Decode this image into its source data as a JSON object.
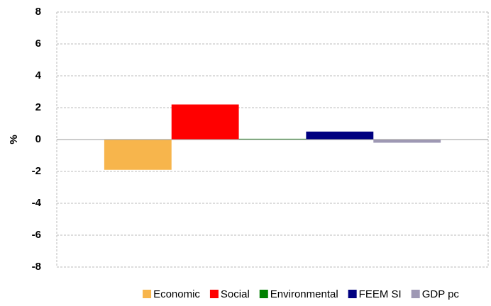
{
  "chart_data": {
    "type": "bar",
    "y_label": "%",
    "categories": [
      null
    ],
    "series": [
      {
        "name": "Economic",
        "color": "#f7b54c",
        "values": [
          -1.9
        ]
      },
      {
        "name": "Social",
        "color": "#ff0000",
        "values": [
          2.2
        ]
      },
      {
        "name": "Environmental",
        "color": "#008000",
        "values": [
          0.05
        ]
      },
      {
        "name": "FEEM SI",
        "color": "#000080",
        "values": [
          0.5
        ]
      },
      {
        "name": "GDP pc",
        "color": "#9e98b4",
        "values": [
          -0.2
        ]
      }
    ],
    "ylim": [
      -8,
      8
    ],
    "yticks": [
      -8,
      -6,
      -4,
      -2,
      0,
      2,
      4,
      6,
      8
    ],
    "grid": true,
    "legend": "bottom"
  }
}
